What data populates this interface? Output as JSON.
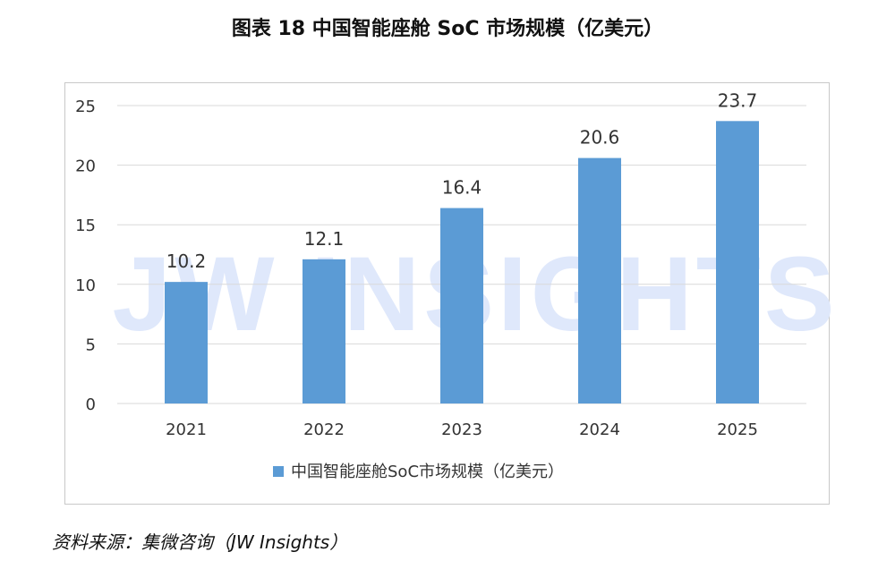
{
  "figure": {
    "title": "图表 18  中国智能座舱 SoC 市场规模（亿美元）",
    "source": "资料来源：集微咨询（JW Insights）",
    "watermark": "JW INSIGHTS"
  },
  "chart_data": {
    "type": "bar",
    "title": "图表 18  中国智能座舱 SoC 市场规模（亿美元）",
    "categories": [
      "2021",
      "2022",
      "2023",
      "2024",
      "2025"
    ],
    "series": [
      {
        "name": "中国智能座舱SoC市场规模（亿美元）",
        "values": [
          10.2,
          12.1,
          16.4,
          20.6,
          23.7
        ]
      }
    ],
    "value_labels": [
      "10.2",
      "12.1",
      "16.4",
      "20.6",
      "23.7"
    ],
    "yticks": [
      "0",
      "5",
      "10",
      "15",
      "20",
      "25"
    ],
    "ylim": [
      0,
      25
    ],
    "xlabel": "",
    "ylabel": "",
    "grid": true,
    "legend_position": "bottom",
    "colors": {
      "bar": "#5b9bd5",
      "grid": "#d9d9d9",
      "text": "#333333",
      "watermark": "#dfe8fb"
    }
  }
}
